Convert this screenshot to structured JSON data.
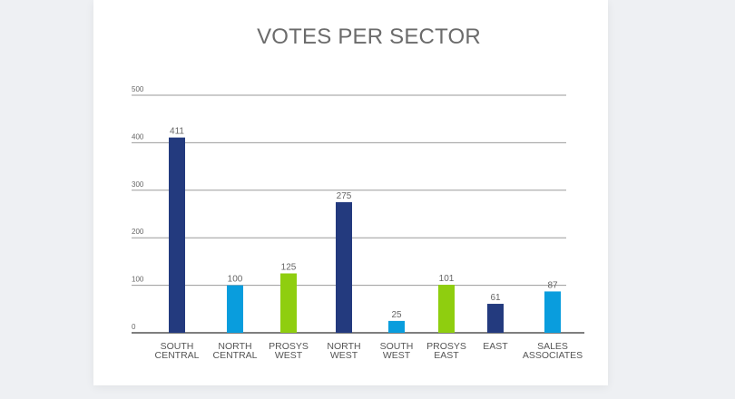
{
  "chart_data": {
    "type": "bar",
    "title": "VOTES PER SECTOR",
    "categories": [
      [
        "SOUTH",
        "CENTRAL"
      ],
      [
        "NORTH",
        "CENTRAL"
      ],
      [
        "PROSYS",
        "WEST"
      ],
      [
        "NORTH",
        "WEST"
      ],
      [
        "SOUTH",
        "WEST"
      ],
      [
        "PROSYS",
        "EAST"
      ],
      [
        "EAST"
      ],
      [
        "SALES",
        "ASSOCIATES"
      ]
    ],
    "values": [
      411,
      100,
      125,
      275,
      25,
      101,
      61,
      87
    ],
    "colors": [
      "#233a7e",
      "#099ddd",
      "#8fce0f",
      "#233a7e",
      "#099ddd",
      "#8fce0f",
      "#233a7e",
      "#099ddd"
    ],
    "ylim": [
      0,
      500
    ],
    "yticks": [
      0,
      100,
      200,
      300,
      400,
      500
    ],
    "grid": true,
    "legend": "none"
  }
}
